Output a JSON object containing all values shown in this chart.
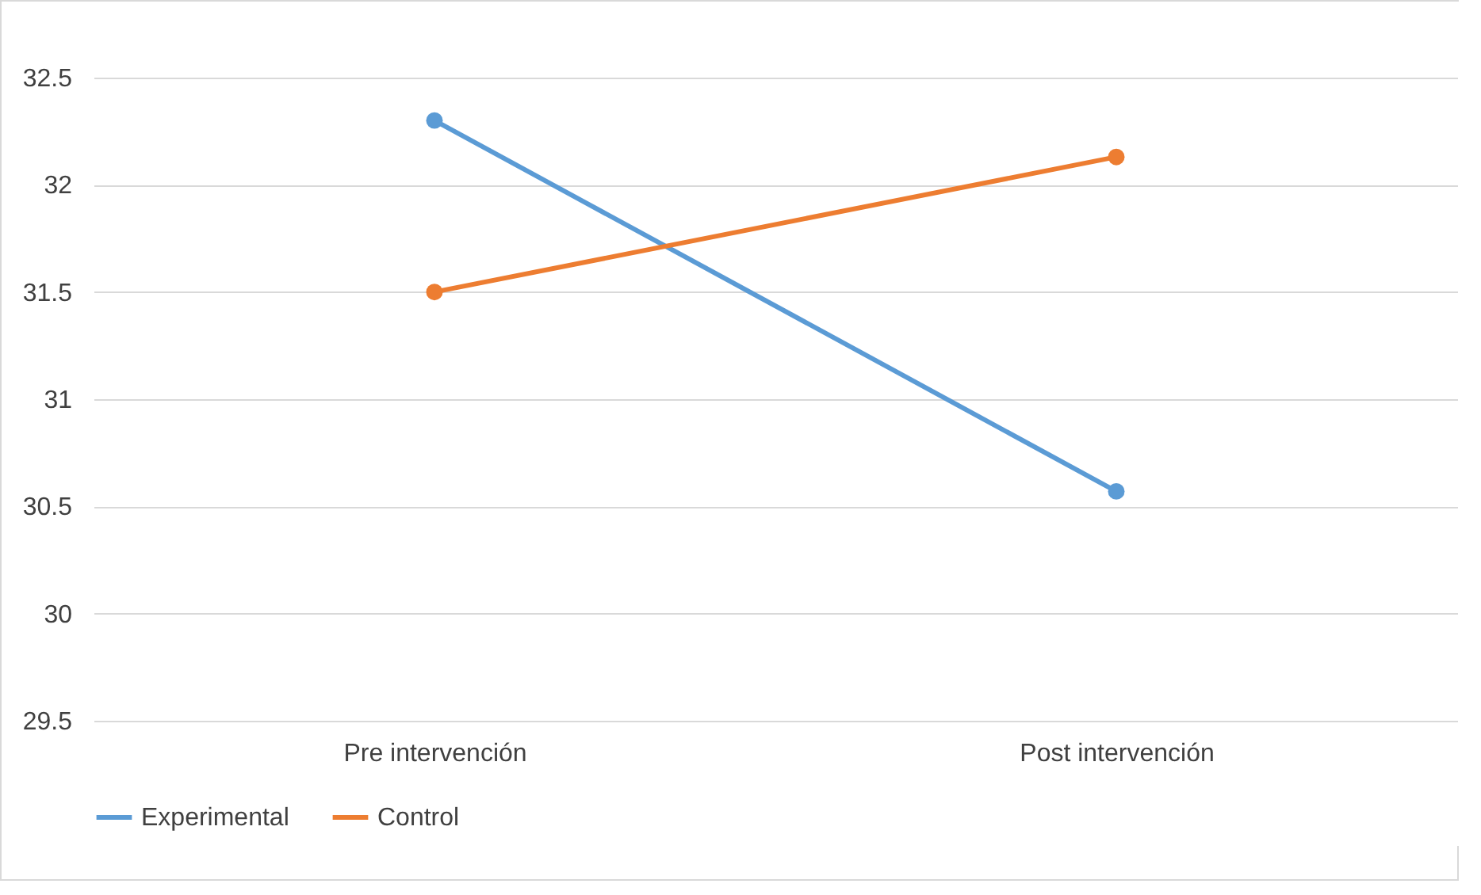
{
  "chart_data": {
    "type": "line",
    "categories": [
      "Pre intervención",
      "Post intervención"
    ],
    "series": [
      {
        "name": "Experimental",
        "color": "#5b9bd5",
        "values": [
          32.3,
          30.57
        ]
      },
      {
        "name": "Control",
        "color": "#ed7d31",
        "values": [
          31.5,
          32.13
        ]
      }
    ],
    "ylim": [
      29.5,
      32.5
    ],
    "yticks": [
      29.5,
      30,
      30.5,
      31,
      31.5,
      32,
      32.5
    ],
    "grid": "y",
    "legend": "bottom",
    "marker": "circle",
    "line_style": "solid"
  }
}
